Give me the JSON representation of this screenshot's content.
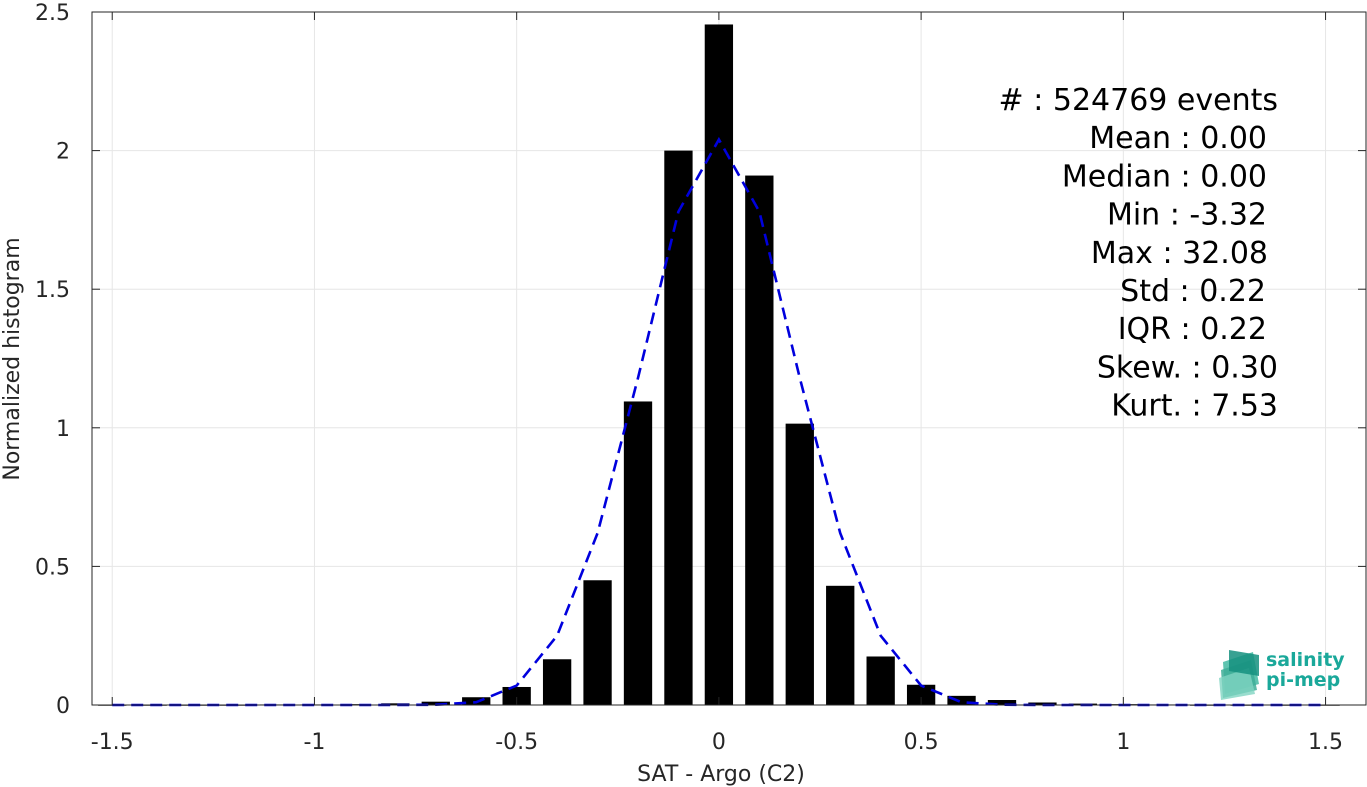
{
  "chart_data": {
    "type": "bar",
    "xlabel": "SAT - Argo (C2)",
    "ylabel": "Normalized histogram",
    "xlim": [
      -1.55,
      1.6
    ],
    "ylim": [
      0,
      2.5
    ],
    "grid": true,
    "xticks": [
      -1.5,
      -1,
      -0.5,
      0,
      0.5,
      1,
      1.5
    ],
    "xtick_labels": [
      "-1.5",
      "-1",
      "-0.5",
      "0",
      "0.5",
      "1",
      "1.5"
    ],
    "yticks": [
      0,
      0.5,
      1,
      1.5,
      2,
      2.5
    ],
    "ytick_labels": [
      "0",
      "0.5",
      "1",
      "1.5",
      "2",
      "2.5"
    ],
    "bar_color": "#000000",
    "bar_width": 0.07,
    "bars": {
      "x": [
        -1.5,
        -1.4,
        -1.3,
        -1.2,
        -1.1,
        -1.0,
        -0.9,
        -0.8,
        -0.7,
        -0.6,
        -0.5,
        -0.4,
        -0.3,
        -0.2,
        -0.1,
        0.0,
        0.1,
        0.2,
        0.3,
        0.4,
        0.5,
        0.6,
        0.7,
        0.8,
        0.9,
        1.0,
        1.1,
        1.2,
        1.3,
        1.4,
        1.5
      ],
      "values": [
        0.001,
        0.001,
        0.001,
        0.001,
        0.002,
        0.002,
        0.003,
        0.006,
        0.012,
        0.028,
        0.065,
        0.165,
        0.45,
        1.095,
        2.0,
        2.455,
        1.91,
        1.015,
        0.43,
        0.175,
        0.073,
        0.033,
        0.018,
        0.009,
        0.005,
        0.003,
        0.002,
        0.001,
        0.001,
        0.001,
        0.001
      ]
    },
    "fit_line": {
      "style": "dashed",
      "color": "#0000dd",
      "x": [
        -1.5,
        -1.4,
        -1.3,
        -1.2,
        -1.1,
        -1.0,
        -0.9,
        -0.8,
        -0.7,
        -0.6,
        -0.5,
        -0.4,
        -0.3,
        -0.2,
        -0.1,
        0.0,
        0.1,
        0.2,
        0.3,
        0.4,
        0.5,
        0.6,
        0.7,
        0.8,
        0.9,
        1.0,
        1.1,
        1.2,
        1.3,
        1.4,
        1.5
      ],
      "y": [
        0,
        0,
        0,
        0,
        0,
        0,
        0,
        0,
        0.001,
        0.01,
        0.07,
        0.25,
        0.62,
        1.18,
        1.78,
        2.04,
        1.78,
        1.18,
        0.62,
        0.25,
        0.07,
        0.01,
        0.001,
        0,
        0,
        0,
        0,
        0,
        0,
        0,
        0
      ]
    },
    "stats": [
      {
        "label": "#  : 524769 events"
      },
      {
        "label": "Mean : 0.00"
      },
      {
        "label": "Median : 0.00"
      },
      {
        "label": "Min : -3.32"
      },
      {
        "label": "Max : 32.08"
      },
      {
        "label": "Std : 0.22"
      },
      {
        "label": "IQR : 0.22"
      },
      {
        "label": "Skew. : 0.30"
      },
      {
        "label": "Kurt. : 7.53"
      }
    ]
  },
  "logo": {
    "line1": "salinity",
    "line2": "pi-mep",
    "color": "#1aa89a"
  }
}
